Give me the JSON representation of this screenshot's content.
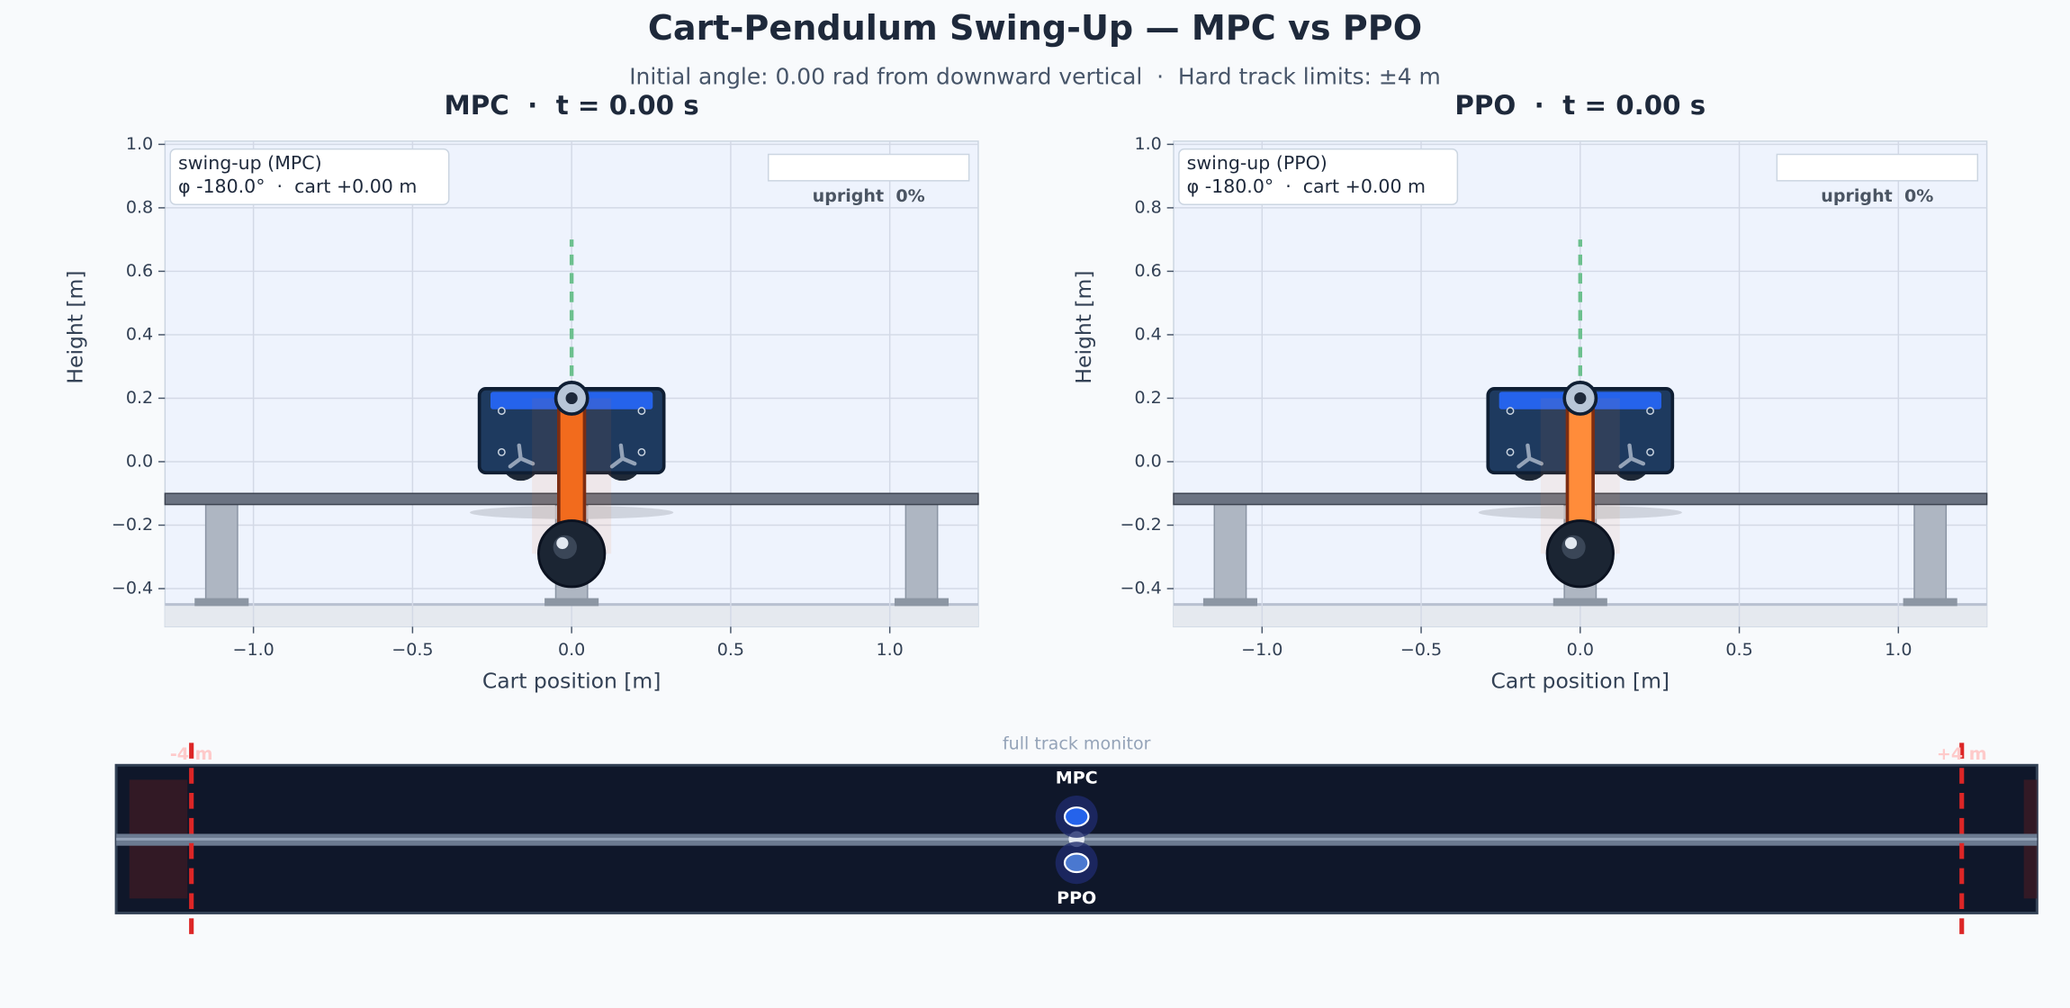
{
  "title": "Cart-Pendulum Swing-Up — MPC vs PPO",
  "subtitle": "Initial angle: 0.00 rad from downward vertical  ·  Hard track limits: ±4 m",
  "chart_data": [
    {
      "type": "cart-pendulum",
      "title": "MPC  ·  t = 0.00 s",
      "x_label": "Cart position [m]",
      "y_label": "Height [m]",
      "xlim": [
        -1.278,
        1.278
      ],
      "ylim": [
        -0.52,
        1.01
      ],
      "xticks": [
        {
          "value": -1,
          "label": "−1.0"
        },
        {
          "value": -0.5,
          "label": "−0.5"
        },
        {
          "value": 0,
          "label": "0.0"
        },
        {
          "value": 0.5,
          "label": "0.5"
        },
        {
          "value": 1,
          "label": "1.0"
        }
      ],
      "yticks": [
        {
          "value": -0.4,
          "label": "−0.4"
        },
        {
          "value": -0.2,
          "label": "−0.2"
        },
        {
          "value": 0,
          "label": "0.0"
        },
        {
          "value": 0.2,
          "label": "0.2"
        },
        {
          "value": 0.4,
          "label": "0.4"
        },
        {
          "value": 0.6,
          "label": "0.6"
        },
        {
          "value": 0.8,
          "label": "0.8"
        },
        {
          "value": 1,
          "label": "1.0"
        }
      ],
      "grid": true,
      "legend_position": "upper left",
      "legend": [
        "swing-up (MPC)",
        "φ -180.0°  ·  cart +0.00 m"
      ],
      "upright_label": "upright  0%",
      "upright_pct": 0,
      "cart_position": 0,
      "angle_deg": -180,
      "pendulum_color": "#f26b1d"
    },
    {
      "type": "cart-pendulum",
      "title": "PPO  ·  t = 0.00 s",
      "x_label": "Cart position [m]",
      "y_label": "Height [m]",
      "xlim": [
        -1.278,
        1.278
      ],
      "ylim": [
        -0.52,
        1.01
      ],
      "xticks": [
        {
          "value": -1,
          "label": "−1.0"
        },
        {
          "value": -0.5,
          "label": "−0.5"
        },
        {
          "value": 0,
          "label": "0.0"
        },
        {
          "value": 0.5,
          "label": "0.5"
        },
        {
          "value": 1,
          "label": "1.0"
        }
      ],
      "yticks": [
        {
          "value": -0.4,
          "label": "−0.4"
        },
        {
          "value": -0.2,
          "label": "−0.2"
        },
        {
          "value": 0,
          "label": "0.0"
        },
        {
          "value": 0.2,
          "label": "0.2"
        },
        {
          "value": 0.4,
          "label": "0.4"
        },
        {
          "value": 0.6,
          "label": "0.6"
        },
        {
          "value": 0.8,
          "label": "0.8"
        },
        {
          "value": 1,
          "label": "1.0"
        }
      ],
      "grid": true,
      "legend_position": "upper left",
      "legend": [
        "swing-up (PPO)",
        "φ -180.0°  ·  cart +0.00 m"
      ],
      "upright_label": "upright  0%",
      "upright_pct": 0,
      "cart_position": 0,
      "angle_deg": -180,
      "pendulum_color": "#ff8c3a"
    },
    {
      "type": "track-monitor",
      "title": "full track monitor",
      "xlim": [
        -4.34,
        4.34
      ],
      "limits": [
        {
          "value": -4,
          "label": "-4 m"
        },
        {
          "value": 4,
          "label": "+4 m"
        }
      ],
      "series": [
        {
          "name": "MPC",
          "color": "#2563eb",
          "position": 0
        },
        {
          "name": "PPO",
          "color": "#4a78d0",
          "position": 0
        }
      ]
    }
  ]
}
